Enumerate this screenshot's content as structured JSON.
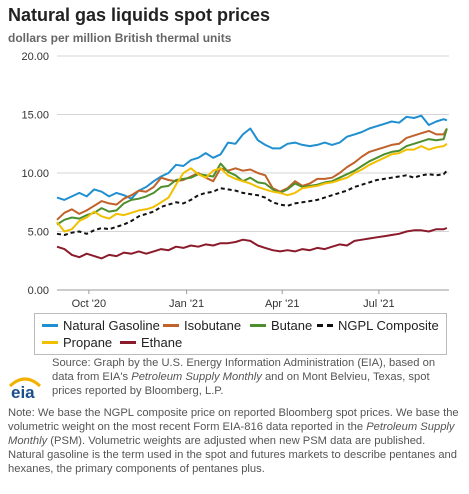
{
  "title": "Natural gas liquids spot prices",
  "subtitle": "dollars per million British thermal units",
  "source": {
    "prefix": "Source: Graph by the U.S. Energy Information Administration (EIA), based on data from EIA's ",
    "italic": "Petroleum Supply Monthly",
    "suffix": " and on Mont Belvieu, Texas, spot prices reported by Bloomberg, L.P."
  },
  "note": {
    "part1": "Note: We base the NGPL composite price on reported Bloomberg spot prices. We base the volumetric weight on the most recent Form EIA-816 data reported in the ",
    "italic": "Petroleum Supply Monthly",
    "part2": " (PSM). Volumetric weights are adjusted when new PSM data are published. Natural gasoline is the term used in the spot and futures markets to describe pentanes and hexanes, the primary components of pentanes plus."
  },
  "logo_text": "eia",
  "chart_data": {
    "type": "line",
    "title": "Natural gas liquids spot prices",
    "subtitle": "dollars per million British thermal units",
    "ylabel": "",
    "xlabel": "",
    "ylim": [
      0,
      20
    ],
    "yticks": [
      "0.00",
      "5.00",
      "10.00",
      "15.00",
      "20.00"
    ],
    "xlim": [
      "2020-09-01",
      "2021-09-05"
    ],
    "xticks": [
      {
        "date": "2020-10-01",
        "label": "Oct '20"
      },
      {
        "date": "2021-01-01",
        "label": "Jan '21"
      },
      {
        "date": "2021-04-01",
        "label": "Apr '21"
      },
      {
        "date": "2021-07-01",
        "label": "Jul '21"
      }
    ],
    "grid": "horizontal",
    "legend_position": "bottom",
    "x": [
      "2020-09-01",
      "2020-09-08",
      "2020-09-15",
      "2020-09-22",
      "2020-09-29",
      "2020-10-06",
      "2020-10-13",
      "2020-10-20",
      "2020-10-27",
      "2020-11-03",
      "2020-11-10",
      "2020-11-17",
      "2020-11-24",
      "2020-12-01",
      "2020-12-08",
      "2020-12-15",
      "2020-12-22",
      "2020-12-29",
      "2021-01-05",
      "2021-01-12",
      "2021-01-19",
      "2021-01-26",
      "2021-02-02",
      "2021-02-09",
      "2021-02-16",
      "2021-02-23",
      "2021-03-02",
      "2021-03-09",
      "2021-03-16",
      "2021-03-23",
      "2021-03-30",
      "2021-04-06",
      "2021-04-13",
      "2021-04-20",
      "2021-04-27",
      "2021-05-04",
      "2021-05-11",
      "2021-05-18",
      "2021-05-25",
      "2021-06-01",
      "2021-06-08",
      "2021-06-15",
      "2021-06-22",
      "2021-06-29",
      "2021-07-06",
      "2021-07-13",
      "2021-07-20",
      "2021-07-27",
      "2021-08-03",
      "2021-08-10",
      "2021-08-17",
      "2021-08-24",
      "2021-08-31",
      "2021-09-03"
    ],
    "series": [
      {
        "name": "Natural Gasoline",
        "color": "#1f8fd0",
        "dash": false,
        "values": [
          7.9,
          7.7,
          8.0,
          8.3,
          8.0,
          8.6,
          8.4,
          8.0,
          8.3,
          8.1,
          7.8,
          8.5,
          8.8,
          9.3,
          9.7,
          10.0,
          10.7,
          10.6,
          11.1,
          11.3,
          11.7,
          11.3,
          11.6,
          12.6,
          12.5,
          13.3,
          13.8,
          12.8,
          12.4,
          12.1,
          12.1,
          12.5,
          12.6,
          12.4,
          12.3,
          12.4,
          12.6,
          12.4,
          12.6,
          13.1,
          13.3,
          13.5,
          13.8,
          14.0,
          14.2,
          14.4,
          14.3,
          14.8,
          14.7,
          14.9,
          14.1,
          14.4,
          14.6,
          14.5
        ]
      },
      {
        "name": "Isobutane",
        "color": "#c0622a",
        "dash": false,
        "values": [
          6.0,
          6.6,
          6.9,
          6.5,
          6.8,
          7.2,
          7.6,
          7.4,
          7.3,
          7.8,
          8.1,
          8.5,
          8.4,
          8.8,
          9.6,
          9.4,
          9.3,
          9.4,
          9.7,
          10.0,
          9.6,
          9.3,
          10.4,
          10.2,
          10.4,
          10.2,
          10.3,
          10.0,
          9.8,
          8.7,
          8.4,
          8.7,
          9.3,
          8.9,
          9.1,
          9.5,
          9.5,
          9.6,
          10.0,
          10.5,
          10.9,
          11.4,
          11.8,
          12.0,
          12.2,
          12.4,
          12.5,
          13.0,
          13.2,
          13.4,
          13.6,
          13.3,
          13.3,
          13.8
        ]
      },
      {
        "name": "Butane",
        "color": "#4e8f2d",
        "dash": false,
        "values": [
          5.6,
          6.0,
          6.2,
          6.1,
          6.4,
          6.6,
          7.0,
          6.7,
          6.8,
          7.4,
          7.7,
          7.8,
          8.0,
          8.3,
          8.8,
          8.9,
          9.4,
          9.5,
          9.6,
          9.9,
          9.8,
          9.7,
          10.8,
          10.1,
          9.8,
          9.3,
          9.6,
          9.2,
          9.1,
          8.6,
          8.3,
          8.6,
          9.1,
          8.8,
          8.9,
          9.0,
          9.2,
          9.3,
          9.6,
          9.9,
          10.2,
          10.6,
          11.0,
          11.3,
          11.6,
          11.8,
          11.9,
          12.3,
          12.5,
          12.7,
          12.9,
          12.8,
          12.9,
          13.8
        ]
      },
      {
        "name": "NGPL Composite",
        "color": "#111111",
        "dash": true,
        "values": [
          4.8,
          4.7,
          4.9,
          5.0,
          4.8,
          5.1,
          5.3,
          5.2,
          5.4,
          5.6,
          5.9,
          6.3,
          6.5,
          6.7,
          7.1,
          7.3,
          7.5,
          7.4,
          7.7,
          8.1,
          8.3,
          8.4,
          8.7,
          8.6,
          8.5,
          8.3,
          8.2,
          8.1,
          7.9,
          7.5,
          7.3,
          7.2,
          7.4,
          7.5,
          7.6,
          7.7,
          7.9,
          8.1,
          8.3,
          8.5,
          8.8,
          9.0,
          9.2,
          9.4,
          9.5,
          9.6,
          9.7,
          9.8,
          9.6,
          9.8,
          9.9,
          9.8,
          9.9,
          10.2
        ]
      },
      {
        "name": "Propane",
        "color": "#f2c000",
        "dash": false,
        "values": [
          5.8,
          5.0,
          5.2,
          5.9,
          6.2,
          6.7,
          6.3,
          6.1,
          6.5,
          6.4,
          6.6,
          6.8,
          6.9,
          7.1,
          7.5,
          7.9,
          9.0,
          10.0,
          10.4,
          9.9,
          9.6,
          10.2,
          10.4,
          9.8,
          9.5,
          9.3,
          9.1,
          8.8,
          8.6,
          8.4,
          8.3,
          8.1,
          8.3,
          8.7,
          8.8,
          8.9,
          9.1,
          9.2,
          9.4,
          9.6,
          10.0,
          10.3,
          10.7,
          11.0,
          11.3,
          11.6,
          11.7,
          12.0,
          12.0,
          12.3,
          12.0,
          12.2,
          12.3,
          12.5
        ]
      },
      {
        "name": "Ethane",
        "color": "#8b1a2b",
        "dash": false,
        "values": [
          3.7,
          3.5,
          3.0,
          2.8,
          3.1,
          2.9,
          2.7,
          3.0,
          2.9,
          3.2,
          3.1,
          3.3,
          3.1,
          3.3,
          3.5,
          3.4,
          3.7,
          3.6,
          3.8,
          3.7,
          3.9,
          3.8,
          4.0,
          4.0,
          4.1,
          4.3,
          4.2,
          3.8,
          3.6,
          3.4,
          3.3,
          3.4,
          3.3,
          3.5,
          3.4,
          3.6,
          3.5,
          3.7,
          3.9,
          3.8,
          4.2,
          4.3,
          4.4,
          4.5,
          4.6,
          4.7,
          4.8,
          5.0,
          5.1,
          5.1,
          5.0,
          5.2,
          5.2,
          5.3
        ]
      }
    ]
  }
}
